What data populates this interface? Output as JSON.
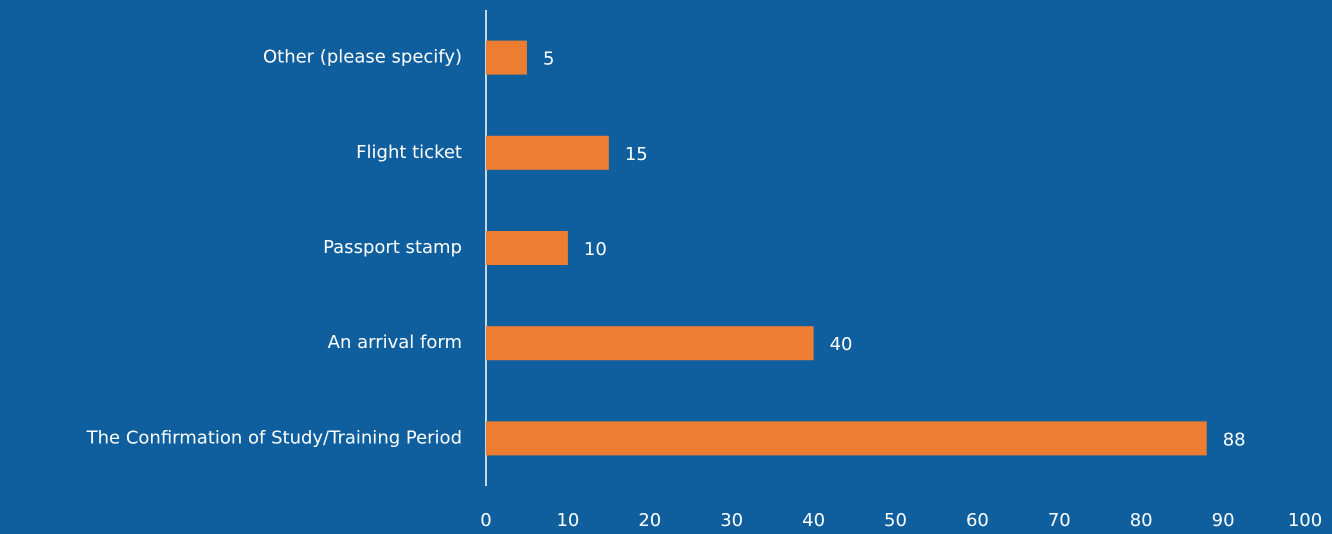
{
  "chart_data": {
    "type": "bar",
    "orientation": "horizontal",
    "categories": [
      "Other (please specify)",
      "Flight ticket",
      "Passport stamp",
      "An arrival form",
      "The Confirmation of Study/Training Period"
    ],
    "values": [
      5,
      15,
      10,
      40,
      88
    ],
    "color": "#ed7d31",
    "xlim": [
      0,
      100
    ],
    "xticks": [
      0,
      10,
      20,
      30,
      40,
      50,
      60,
      70,
      80,
      90,
      100
    ],
    "grid": false
  }
}
